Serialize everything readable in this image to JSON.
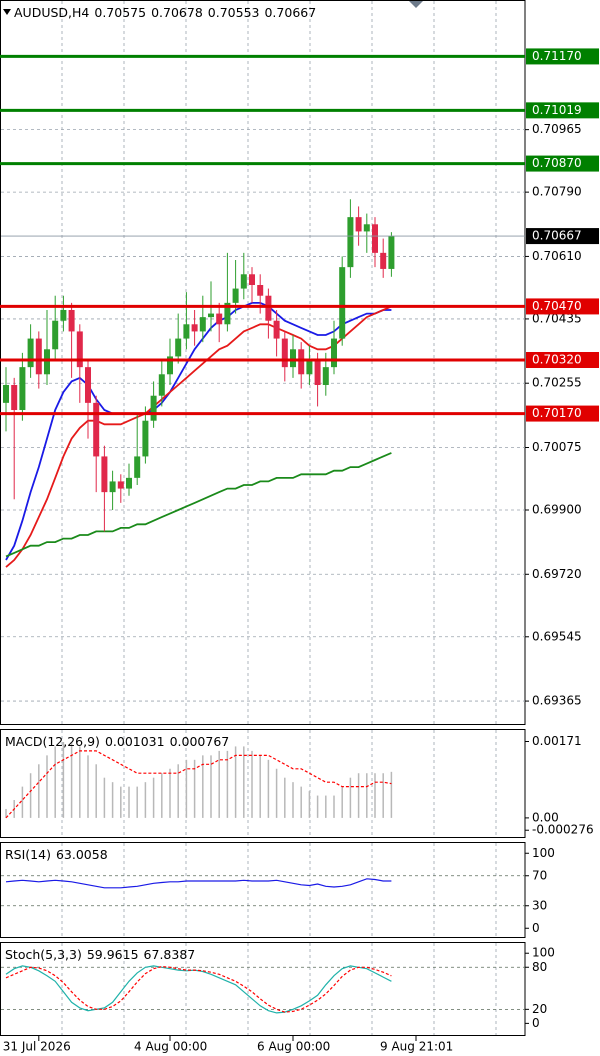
{
  "chart_data": [
    {
      "type": "candlestick",
      "title": "AUDUSD,H4",
      "open": [
        0.702,
        0.7025,
        0.7018,
        0.703,
        0.7038,
        0.7028,
        0.7035,
        0.7043,
        0.7046,
        0.704,
        0.703,
        0.702,
        0.7005,
        0.6995,
        0.6998,
        0.6996,
        0.6999,
        0.7005,
        0.7015,
        0.7022,
        0.7028,
        0.7033,
        0.7038,
        0.7042,
        0.704,
        0.7044,
        0.7045,
        0.7042,
        0.7048,
        0.7052,
        0.7056,
        0.7053,
        0.705,
        0.7043,
        0.7038,
        0.703,
        0.7035,
        0.7028,
        0.7032,
        0.7025,
        0.703,
        0.7038,
        0.7058,
        0.7072,
        0.7068,
        0.707,
        0.7062,
        0.70575
      ],
      "high": [
        0.703,
        0.7027,
        0.7034,
        0.7042,
        0.704,
        0.7046,
        0.705,
        0.705,
        0.7048,
        0.7042,
        0.7032,
        0.7022,
        0.7008,
        0.7001,
        0.7,
        0.7003,
        0.7017,
        0.7019,
        0.7026,
        0.7032,
        0.7038,
        0.7045,
        0.7051,
        0.7046,
        0.705,
        0.7054,
        0.7048,
        0.7062,
        0.706,
        0.7062,
        0.7058,
        0.7056,
        0.7052,
        0.7046,
        0.704,
        0.7039,
        0.7037,
        0.7036,
        0.7034,
        0.7034,
        0.7043,
        0.7061,
        0.7077,
        0.7075,
        0.7073,
        0.7072,
        0.7066,
        0.70678
      ],
      "low": [
        0.7012,
        0.6993,
        0.7015,
        0.7027,
        0.7024,
        0.7025,
        0.7032,
        0.704,
        0.7027,
        0.702,
        0.701,
        0.6995,
        0.6984,
        0.699,
        0.6992,
        0.6994,
        0.6997,
        0.7003,
        0.7013,
        0.7019,
        0.7025,
        0.7031,
        0.7035,
        0.7036,
        0.7037,
        0.704,
        0.7037,
        0.704,
        0.7045,
        0.7049,
        0.7048,
        0.7045,
        0.7038,
        0.7033,
        0.7026,
        0.7027,
        0.7024,
        0.7025,
        0.7019,
        0.7022,
        0.7028,
        0.7036,
        0.7055,
        0.7064,
        0.7062,
        0.7058,
        0.7055,
        0.70553
      ],
      "close": [
        0.7025,
        0.7018,
        0.703,
        0.7038,
        0.7028,
        0.7035,
        0.7043,
        0.7046,
        0.704,
        0.703,
        0.702,
        0.7005,
        0.6995,
        0.6998,
        0.6996,
        0.6999,
        0.7005,
        0.7015,
        0.7022,
        0.7028,
        0.7033,
        0.7038,
        0.7042,
        0.704,
        0.7044,
        0.7045,
        0.7042,
        0.7048,
        0.7052,
        0.7056,
        0.7053,
        0.705,
        0.7043,
        0.7038,
        0.703,
        0.7035,
        0.7028,
        0.7032,
        0.7025,
        0.703,
        0.7038,
        0.7058,
        0.7072,
        0.7068,
        0.707,
        0.7062,
        0.70575,
        0.70667
      ],
      "up_color": "#2e9e2e",
      "down_color": "#e0284a",
      "series": [
        {
          "color": "#1a1ae6",
          "values": [
            0.6976,
            0.698,
            0.6987,
            0.6995,
            0.7002,
            0.701,
            0.7018,
            0.7023,
            0.7026,
            0.7027,
            0.7025,
            0.7021,
            0.7018,
            0.7017,
            0.7017,
            0.7017,
            0.7017,
            0.7017,
            0.7018,
            0.702,
            0.7023,
            0.7027,
            0.7031,
            0.7035,
            0.7038,
            0.7041,
            0.7043,
            0.7044,
            0.7046,
            0.7047,
            0.7048,
            0.7048,
            0.7047,
            0.7045,
            0.7043,
            0.7042,
            0.7041,
            0.704,
            0.7039,
            0.7039,
            0.704,
            0.7042,
            0.7043,
            0.7044,
            0.7045,
            0.7045,
            0.7046,
            0.7046
          ]
        },
        {
          "color": "#e61a1a",
          "values": [
            0.6974,
            0.6976,
            0.6979,
            0.6983,
            0.6988,
            0.6993,
            0.6999,
            0.7005,
            0.701,
            0.7013,
            0.7015,
            0.7015,
            0.7014,
            0.7014,
            0.7014,
            0.7015,
            0.7016,
            0.7017,
            0.7019,
            0.7021,
            0.7023,
            0.7025,
            0.7027,
            0.7029,
            0.7031,
            0.7033,
            0.7035,
            0.7036,
            0.7038,
            0.704,
            0.7041,
            0.7042,
            0.7042,
            0.7041,
            0.704,
            0.7039,
            0.7038,
            0.7036,
            0.7035,
            0.7035,
            0.7036,
            0.7038,
            0.704,
            0.7042,
            0.7044,
            0.7045,
            0.7046,
            0.7047
          ]
        },
        {
          "color": "#1a8a1a",
          "values": [
            0.6977,
            0.6978,
            0.6979,
            0.698,
            0.698,
            0.6981,
            0.6981,
            0.6982,
            0.6982,
            0.6983,
            0.6983,
            0.6984,
            0.6984,
            0.6984,
            0.6985,
            0.6985,
            0.6986,
            0.6986,
            0.6987,
            0.6988,
            0.6989,
            0.699,
            0.6991,
            0.6992,
            0.6993,
            0.6994,
            0.6995,
            0.6996,
            0.6996,
            0.6997,
            0.6997,
            0.6998,
            0.6998,
            0.6999,
            0.6999,
            0.6999,
            0.7,
            0.7,
            0.7,
            0.7,
            0.7001,
            0.7001,
            0.7002,
            0.7002,
            0.7003,
            0.7004,
            0.7005,
            0.7006
          ]
        }
      ],
      "levels": [
        {
          "value": 0.7117,
          "label": "0.71170",
          "color": "#008000"
        },
        {
          "value": 0.71019,
          "label": "0.71019",
          "color": "#008000"
        },
        {
          "value": 0.7087,
          "label": "0.70870",
          "color": "#008000"
        },
        {
          "value": 0.7047,
          "label": "0.70470",
          "color": "#e00000"
        },
        {
          "value": 0.7032,
          "label": "0.70320",
          "color": "#e00000"
        },
        {
          "value": 0.7017,
          "label": "0.70170",
          "color": "#e00000"
        }
      ],
      "last_price_label": "0.70667",
      "ylim": [
        0.69298,
        0.71328
      ],
      "yticks": [
        {
          "value": 0.70965,
          "label": "0.70965"
        },
        {
          "value": 0.7079,
          "label": "0.70790"
        },
        {
          "value": 0.7061,
          "label": "0.70610"
        },
        {
          "value": 0.70435,
          "label": "0.70435"
        },
        {
          "value": 0.70255,
          "label": "0.70255"
        },
        {
          "value": 0.70075,
          "label": "0.70075"
        },
        {
          "value": 0.699,
          "label": "0.69900"
        },
        {
          "value": 0.6972,
          "label": "0.69720"
        },
        {
          "value": 0.69545,
          "label": "0.69545"
        },
        {
          "value": 0.69365,
          "label": "0.69365"
        }
      ],
      "xticks": [
        {
          "value": 4,
          "label": "31 Jul 2026"
        },
        {
          "value": 20,
          "label": "4 Aug 00:00"
        },
        {
          "value": 35,
          "label": "6 Aug 00:00"
        },
        {
          "value": 50,
          "label": "9 Aug 21:01"
        }
      ],
      "grid": true
    },
    {
      "type": "bar",
      "title": "MACD(12,26,9)",
      "series": [
        {
          "type": "bar",
          "color": "#b8b8b8",
          "values": [
            0.0002,
            0.0004,
            0.0007,
            0.001,
            0.0012,
            0.0014,
            0.0016,
            0.0017,
            0.0017,
            0.0016,
            0.0014,
            0.0012,
            0.0009,
            0.0008,
            0.0007,
            0.0007,
            0.0007,
            0.0008,
            0.0009,
            0.001,
            0.0011,
            0.0012,
            0.0013,
            0.0013,
            0.0014,
            0.0014,
            0.0015,
            0.0015,
            0.0016,
            0.0016,
            0.0015,
            0.0014,
            0.0013,
            0.0011,
            0.0009,
            0.0008,
            0.0007,
            0.0006,
            0.0005,
            0.0005,
            0.0005,
            0.0007,
            0.0009,
            0.001,
            0.001,
            0.001,
            0.001,
            0.001031
          ]
        },
        {
          "type": "line",
          "dash": true,
          "color": "#ff0000",
          "values": [
            0.0,
            0.0002,
            0.0004,
            0.0006,
            0.0008,
            0.001,
            0.0012,
            0.0013,
            0.0014,
            0.0015,
            0.0015,
            0.0015,
            0.0014,
            0.0013,
            0.0012,
            0.0011,
            0.001,
            0.001,
            0.001,
            0.001,
            0.001,
            0.001,
            0.0011,
            0.0011,
            0.0012,
            0.0012,
            0.0013,
            0.0013,
            0.0014,
            0.0014,
            0.0014,
            0.0014,
            0.0014,
            0.0013,
            0.0012,
            0.0011,
            0.0011,
            0.001,
            0.0009,
            0.0008,
            0.0008,
            0.0007,
            0.0007,
            0.0007,
            0.0007,
            0.0008,
            0.0008,
            0.000767
          ]
        }
      ],
      "ylim": [
        -0.00045,
        0.00199
      ],
      "yticks": [
        {
          "value": 0.00171,
          "label": "0.00171"
        },
        {
          "value": 0,
          "label": "0.00"
        },
        {
          "value": -0.000276,
          "label": "-0.000276"
        }
      ]
    },
    {
      "type": "line",
      "title": "RSI(14)",
      "series": [
        {
          "type": "line",
          "color": "#1a1ae6",
          "values": [
            62,
            63,
            64,
            63,
            62,
            63,
            64,
            63,
            62,
            60,
            58,
            56,
            54,
            54,
            54,
            55,
            56,
            58,
            60,
            61,
            62,
            62,
            63,
            63,
            63,
            63,
            63,
            63,
            63,
            64,
            63,
            63,
            63,
            64,
            62,
            60,
            58,
            57,
            59,
            56,
            55,
            56,
            58,
            62,
            66,
            65,
            63,
            63.0058
          ]
        }
      ],
      "ylim": [
        -13,
        115
      ],
      "yticks": [
        100,
        70,
        30,
        0
      ],
      "levels": [
        70,
        30
      ]
    },
    {
      "type": "line",
      "title": "Stoch(5,3,3)",
      "series": [
        {
          "type": "line",
          "color": "#20b2aa",
          "values": [
            70,
            78,
            82,
            80,
            75,
            68,
            60,
            45,
            30,
            22,
            18,
            20,
            22,
            30,
            45,
            60,
            72,
            80,
            82,
            80,
            78,
            76,
            75,
            76,
            74,
            70,
            65,
            60,
            55,
            45,
            35,
            25,
            18,
            15,
            16,
            20,
            25,
            32,
            40,
            55,
            68,
            78,
            82,
            80,
            78,
            72,
            66,
            59.9615
          ]
        },
        {
          "type": "line",
          "dash": true,
          "color": "#ff0000",
          "values": [
            65,
            70,
            75,
            80,
            79,
            75,
            68,
            58,
            45,
            33,
            24,
            20,
            20,
            24,
            32,
            45,
            59,
            71,
            78,
            81,
            80,
            78,
            76,
            76,
            75,
            73,
            70,
            65,
            60,
            53,
            45,
            35,
            26,
            20,
            16,
            17,
            20,
            26,
            33,
            42,
            54,
            67,
            76,
            80,
            80,
            77,
            73,
            67.8387
          ]
        }
      ],
      "ylim": [
        -18,
        116
      ],
      "yticks": [
        100,
        80,
        20,
        0
      ],
      "levels": [
        80,
        20
      ]
    }
  ]
}
